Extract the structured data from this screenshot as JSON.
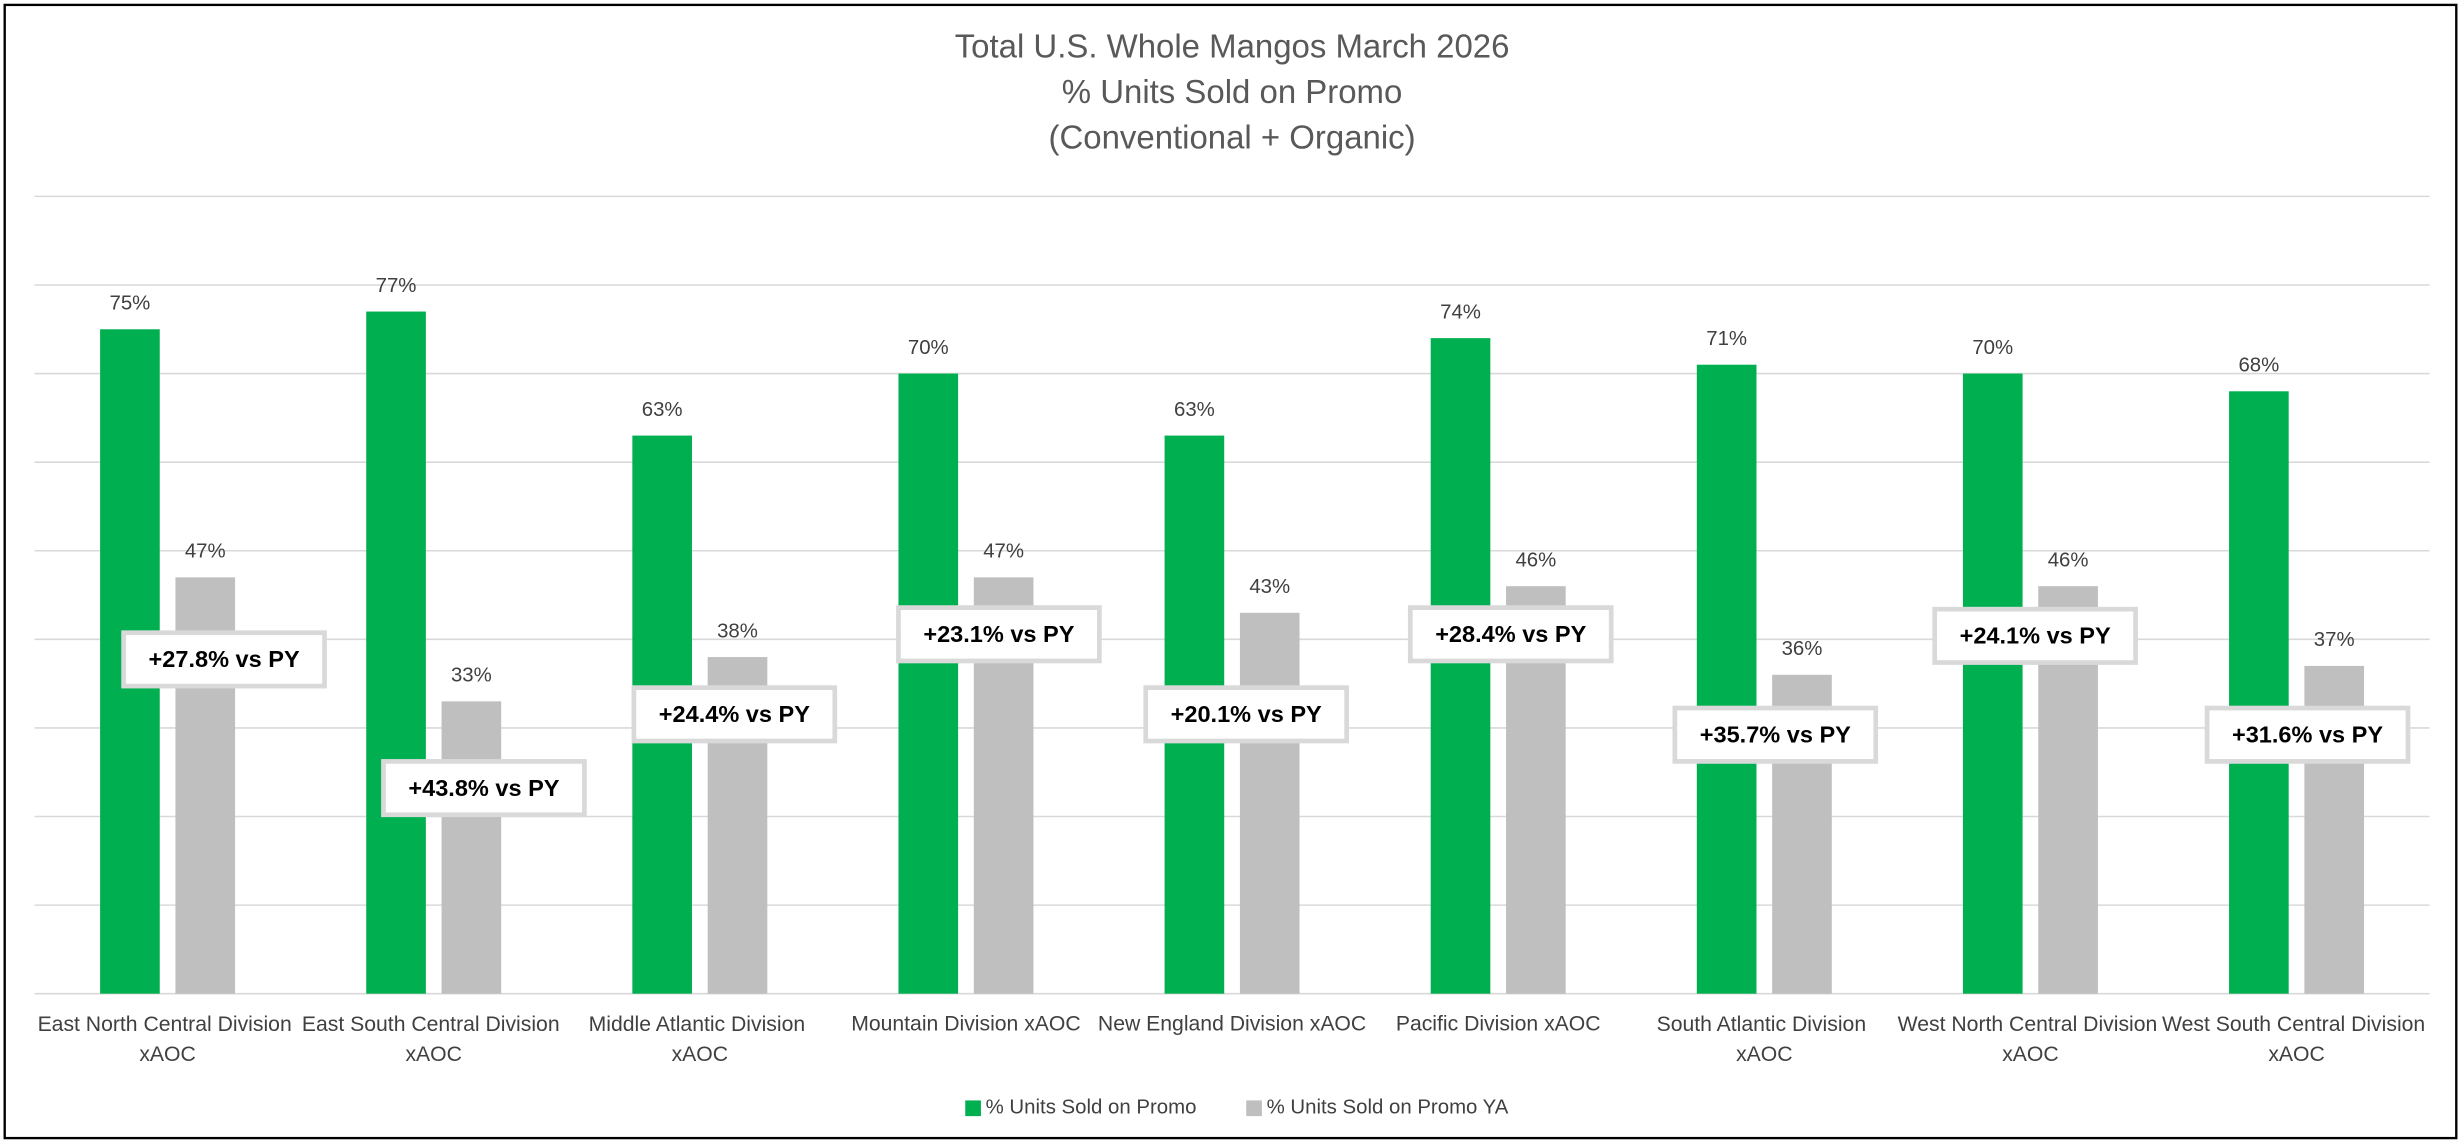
{
  "chart_data": {
    "type": "bar",
    "title": [
      "Total U.S. Whole Mangos March 2026",
      "% Units Sold on Promo",
      "(Conventional + Organic)"
    ],
    "categories": [
      "East North Central Division xAOC",
      "East South Central Division xAOC",
      "Middle Atlantic Division xAOC",
      "Mountain Division xAOC",
      "New England Division xAOC",
      "Pacific Division xAOC",
      "South Atlantic Division xAOC",
      "West North Central Division xAOC",
      "West South Central Division xAOC"
    ],
    "series": [
      {
        "name": "% Units Sold on Promo",
        "color": "#00b050",
        "values": [
          75,
          77,
          63,
          70,
          63,
          74,
          71,
          70,
          68
        ],
        "value_labels": [
          "75%",
          "77%",
          "63%",
          "70%",
          "63%",
          "74%",
          "71%",
          "70%",
          "68%"
        ]
      },
      {
        "name": "% Units Sold on Promo YA",
        "color": "#bfbfbf",
        "values": [
          47,
          33,
          38,
          47,
          43,
          46,
          36,
          46,
          37
        ],
        "value_labels": [
          "47%",
          "33%",
          "38%",
          "47%",
          "43%",
          "46%",
          "36%",
          "46%",
          "37%"
        ]
      }
    ],
    "annotations": [
      "+27.8% vs PY",
      "+43.8% vs PY",
      "+24.4% vs PY",
      "+23.1% vs PY",
      "+20.1% vs PY",
      "+28.4% vs PY",
      "+35.7% vs PY",
      "+24.1% vs PY",
      "+31.6% vs PY"
    ],
    "ylim": [
      0,
      90
    ],
    "yticks": [
      0,
      10,
      20,
      30,
      40,
      50,
      60,
      70,
      80,
      90
    ],
    "grid": true,
    "legend": "bottom"
  }
}
